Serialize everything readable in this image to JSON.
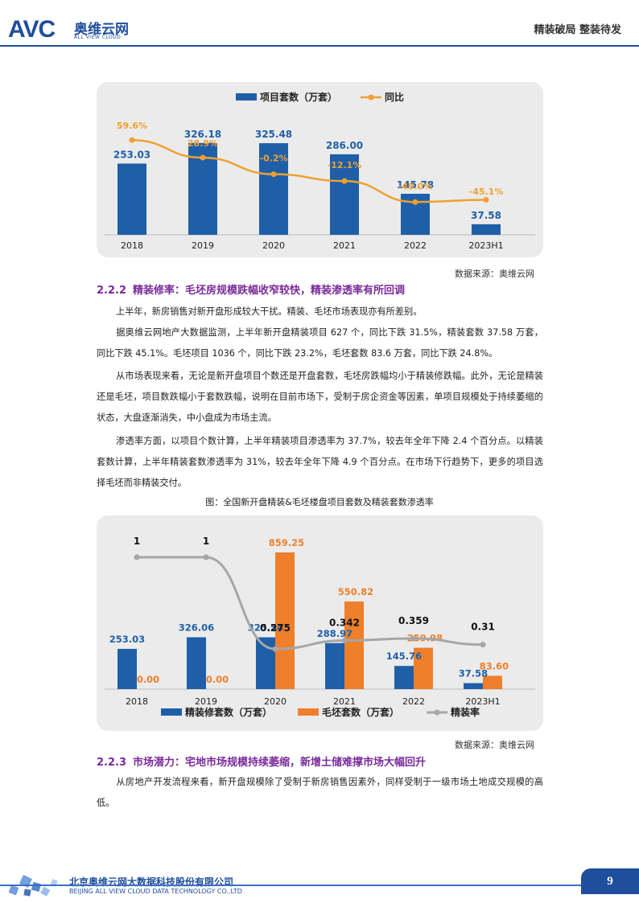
{
  "header": {
    "logo_avc": "AVC",
    "logo_cn": "奥维云网",
    "logo_en": "ALL VIEW CLOUD",
    "title": "精装破局 整装待发"
  },
  "colors": {
    "brand": "#1f4e9c",
    "bar_blue": "#1f5fa8",
    "bar_orange": "#ef7f2a",
    "line_orange": "#f0a030",
    "line_gray": "#a6a6a6",
    "section": "#7a2b9a"
  },
  "chart_data": [
    {
      "type": "bar",
      "categories": [
        "2018",
        "2019",
        "2020",
        "2021",
        "2022",
        "2023H1"
      ],
      "series": [
        {
          "name": "项目套数（万套）",
          "type": "bar",
          "values": [
            253.03,
            326.18,
            325.48,
            286.0,
            145.78,
            37.58
          ],
          "labels": [
            "253.03",
            "326.18",
            "325.48",
            "286.00",
            "145.78",
            "37.58"
          ]
        },
        {
          "name": "同比",
          "type": "line",
          "values": [
            59.6,
            28.9,
            -0.2,
            -12.1,
            -49.0,
            -45.1
          ],
          "labels": [
            "59.6%",
            "28.9%",
            "-0.2%",
            "-12.1%",
            "-49.0%",
            "-45.1%"
          ]
        }
      ],
      "legend": "top"
    },
    {
      "type": "bar",
      "categories": [
        "2018",
        "2019",
        "2020",
        "2021",
        "2022",
        "2023H1"
      ],
      "series": [
        {
          "name": "精装修套数（万套）",
          "type": "bar",
          "values": [
            253.03,
            326.06,
            325.54,
            288.97,
            145.76,
            37.58
          ],
          "labels": [
            "253.03",
            "326.06",
            "325.54",
            "288.97",
            "145.76",
            "37.58"
          ]
        },
        {
          "name": "毛坯套数（万套）",
          "type": "bar",
          "values": [
            0.0,
            0.0,
            859.25,
            550.82,
            259.98,
            83.6
          ],
          "labels": [
            "0.00",
            "0.00",
            "859.25",
            "550.82",
            "259.98",
            "83.60"
          ]
        },
        {
          "name": "精装率",
          "type": "line",
          "values": [
            1,
            1,
            0.275,
            0.342,
            0.359,
            0.31
          ],
          "labels": [
            "1",
            "1",
            "0.275",
            "0.342",
            "0.359",
            "0.31"
          ]
        }
      ],
      "legend": "bottom"
    }
  ],
  "source1": "数据来源：奥维云网",
  "section1": {
    "num": "2.2.2",
    "title": "精装修率：毛坯房规模跌幅收窄较快，精装渗透率有所回调"
  },
  "paragraphs": [
    "上半年，新房销售对新开盘形成较大干扰。精装、毛坯市场表现亦有所差别。",
    "据奥维云网地产大数据监测，上半年新开盘精装项目 627 个，同比下跌 31.5%，精装套数 37.58 万套，同比下跌 45.1%。毛坯项目 1036 个，同比下跌 23.2%，毛坯套数 83.6 万套，同比下跌 24.8%。",
    "从市场表现来看，无论是新开盘项目个数还是开盘套数，毛坯房跌幅均小于精装修跌幅。此外，无论是精装还是毛坯，项目数跌幅小于套数跌幅，说明在目前市场下，受制于房企资金等因素，单项目规模处于持续萎缩的状态，大盘逐渐消失，中小盘成为市场主流。",
    "渗透率方面，以项目个数计算，上半年精装项目渗透率为 37.7%，较去年全年下降 2.4 个百分点。以精装套数计算，上半年精装套数渗透率为 31%，较去年全年下降 4.9 个百分点。在市场下行趋势下，更多的项目选择毛坯而非精装交付。"
  ],
  "caption2": "图：全国新开盘精装&毛坯楼盘项目套数及精装套数渗透率",
  "source2": "数据来源：奥维云网",
  "section2": {
    "num": "2.2.3",
    "title": "市场潜力：宅地市场规模持续萎缩，新增土储难撑市场大幅回升"
  },
  "paragraph_last": "从房地产开发流程来看，新开盘规模除了受制于新房销售因素外，同样受制于一级市场土地成交规模的高低。",
  "footer": {
    "company_cn": "北京奥维云网大数据科技股份有限公司",
    "company_en": "BEIJING ALL VIEW CLOUD DATA TECHNOLOGY CO.,LTD",
    "page": "9"
  }
}
